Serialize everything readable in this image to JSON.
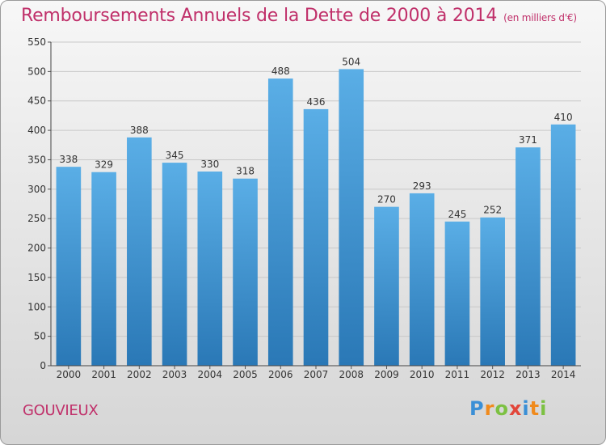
{
  "header": {
    "title": "Remboursements Annuels de la Dette de 2000 à 2014",
    "unit": "(en milliers d'€)"
  },
  "footer": {
    "commune": "GOUVIEUX",
    "logo_text": "Proxiti",
    "logo_letters": [
      {
        "ch": "P",
        "color": "#3a8fd6"
      },
      {
        "ch": "r",
        "color": "#f08a1c"
      },
      {
        "ch": "o",
        "color": "#7cc142"
      },
      {
        "ch": "x",
        "color": "#e2463a"
      },
      {
        "ch": "i",
        "color": "#3a8fd6"
      },
      {
        "ch": "t",
        "color": "#f08a1c"
      },
      {
        "ch": "i",
        "color": "#7cc142"
      }
    ]
  },
  "colors": {
    "title": "#c0306a",
    "bar_top": "#5aaee6",
    "bar_bottom": "#2a78b6",
    "grid": "#c8c8c8",
    "axis_text": "#333333"
  },
  "chart_data": {
    "type": "bar",
    "title": "Remboursements Annuels de la Dette de 2000 à 2014",
    "categories": [
      "2000",
      "2001",
      "2002",
      "2003",
      "2004",
      "2005",
      "2006",
      "2007",
      "2008",
      "2009",
      "2010",
      "2011",
      "2012",
      "2013",
      "2014"
    ],
    "values": [
      338,
      329,
      388,
      345,
      330,
      318,
      488,
      436,
      504,
      270,
      293,
      245,
      252,
      371,
      410
    ],
    "ylim": [
      0,
      550
    ],
    "yticks": [
      0,
      50,
      100,
      150,
      200,
      250,
      300,
      350,
      400,
      450,
      500,
      550
    ],
    "grid": true,
    "xlabel": "",
    "ylabel": ""
  }
}
